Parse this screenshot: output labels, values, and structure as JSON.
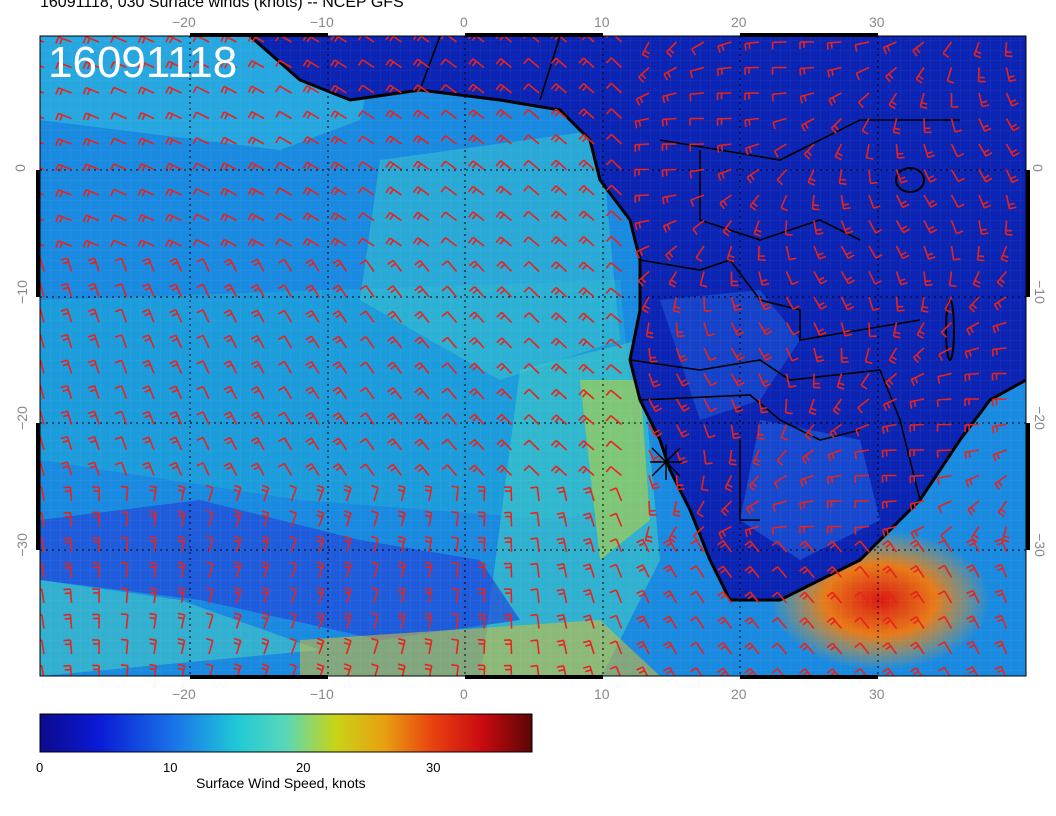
{
  "title": "16091118, 030 Surface winds (knots) -- NCEP GFS",
  "stamp": "16091118",
  "axes": {
    "lon_ticks": [
      "−20",
      "−10",
      "0",
      "10",
      "20",
      "30"
    ],
    "lat_ticks": [
      "0",
      "−10",
      "−20",
      "−30"
    ]
  },
  "colorbar": {
    "title": "Surface Wind Speed, knots",
    "tick_labels": [
      "0",
      "10",
      "20",
      "30"
    ],
    "range": [
      0,
      38
    ]
  },
  "colors": {
    "barb": "#e8231c",
    "low_wind": "#0a1aa6",
    "high_wind": "#c8141e"
  },
  "marker": "storm-center-x"
}
